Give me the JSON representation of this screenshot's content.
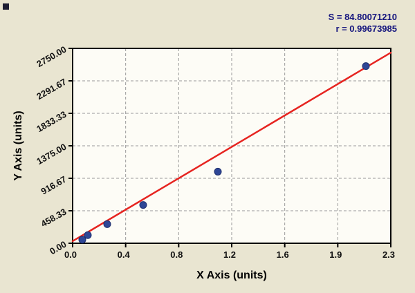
{
  "colors": {
    "background": "#e9e5d1",
    "plot_bg": "#fdfcf6",
    "frame": "#000000",
    "grid": "#999999",
    "point_fill": "#2e4696",
    "point_stroke": "#1f2f6e",
    "line": "#e62420",
    "stats_text": "#15157e",
    "axis_text": "#111111"
  },
  "chart_data": {
    "type": "scatter",
    "title": "",
    "xlabel": "X Axis (units)",
    "ylabel": "Y Axis (units)",
    "xlim": [
      0,
      2.3
    ],
    "ylim": [
      0,
      2750
    ],
    "grid": "dashed",
    "legend": "none",
    "x_tick_labels": [
      "0.0",
      "0.4",
      "0.8",
      "1.2",
      "1.6",
      "1.9",
      "2.3"
    ],
    "y_tick_labels": [
      "0.00",
      "458.33",
      "916.67",
      "1375.00",
      "1833.33",
      "2291.67",
      "2750.00"
    ],
    "points": [
      {
        "x": 0.07,
        "y": 50
      },
      {
        "x": 0.11,
        "y": 115
      },
      {
        "x": 0.25,
        "y": 270
      },
      {
        "x": 0.51,
        "y": 540
      },
      {
        "x": 1.05,
        "y": 1010
      },
      {
        "x": 2.12,
        "y": 2500
      }
    ],
    "regression_line": {
      "x_start": 0,
      "y_start": 30,
      "x_end": 2.3,
      "y_end": 2690
    },
    "stats": {
      "s": "S = 84.80071210",
      "r": "r = 0.99673985"
    }
  }
}
